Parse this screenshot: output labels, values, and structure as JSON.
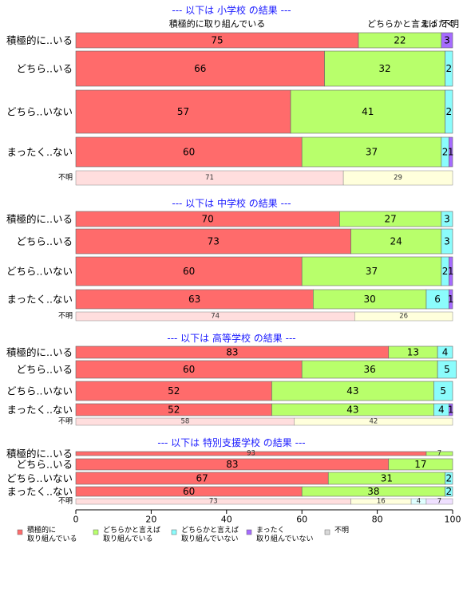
{
  "chart_data": {
    "type": "bar",
    "orientation": "horizontal-stacked",
    "xlim": [
      0,
      100
    ],
    "xticks": [
      0,
      20,
      40,
      60,
      80,
      100
    ],
    "category_names": [
      "積極的に取り組んでいる",
      "どちらかと言えば取り組んでいる",
      "どちらかと言えば取り組んでいない",
      "まったく取り組んでいない",
      "不明"
    ],
    "colors": [
      "#ff6b6b",
      "#b8ff6b",
      "#8bfcfc",
      "#a66bff",
      "#d9d9d9"
    ],
    "legend": [
      {
        "lines": [
          "積極的に",
          "取り組んでいる"
        ]
      },
      {
        "lines": [
          "どちらかと言えば",
          "取り組んでいる"
        ]
      },
      {
        "lines": [
          "どちらかと言えば",
          "取り組んでいない"
        ]
      },
      {
        "lines": [
          "まったく",
          "取り組んでいない"
        ]
      },
      {
        "lines": [
          "不明"
        ]
      }
    ],
    "top_labels": [
      "積極的に取り組んでいる",
      "どちらかと言えば",
      "まったく",
      "不明"
    ],
    "panels": [
      {
        "title": "--- 以下は 小学校 の結果 ---",
        "rows": [
          {
            "label": "積極的に..いる",
            "values": [
              75,
              22,
              0,
              3
            ]
          },
          {
            "label": "どちら..いる",
            "values": [
              66,
              32,
              2,
              0
            ]
          },
          {
            "label": "どちら..いない",
            "values": [
              57,
              41,
              2,
              0
            ]
          },
          {
            "label": "まったく..ない",
            "values": [
              60,
              37,
              2,
              1
            ]
          }
        ],
        "unknown": {
          "label": "不明",
          "values": [
            71,
            29
          ]
        }
      },
      {
        "title": "--- 以下は 中学校 の結果 ---",
        "rows": [
          {
            "label": "積極的に..いる",
            "values": [
              70,
              27,
              3,
              0
            ]
          },
          {
            "label": "どちら..いる",
            "values": [
              73,
              24,
              3,
              0
            ]
          },
          {
            "label": "どちら..いない",
            "values": [
              60,
              37,
              2,
              1
            ]
          },
          {
            "label": "まったく..ない",
            "values": [
              63,
              30,
              6,
              1
            ]
          }
        ],
        "unknown": {
          "label": "不明",
          "values": [
            74,
            26
          ]
        }
      },
      {
        "title": "--- 以下は 高等学校 の結果 ---",
        "rows": [
          {
            "label": "積極的に..いる",
            "values": [
              83,
              13,
              4,
              0
            ]
          },
          {
            "label": "どちら..いる",
            "values": [
              60,
              36,
              5,
              0
            ]
          },
          {
            "label": "どちら..いない",
            "values": [
              52,
              43,
              5,
              0
            ]
          },
          {
            "label": "まったく..ない",
            "values": [
              52,
              43,
              4,
              1
            ]
          }
        ],
        "unknown": {
          "label": "不明",
          "values": [
            58,
            42
          ]
        }
      },
      {
        "title": "--- 以下は 特別支援学校 の結果 ---",
        "rows": [
          {
            "label": "積極的に..いる",
            "values": [
              93,
              7,
              0,
              0
            ]
          },
          {
            "label": "どちら..いる",
            "values": [
              83,
              17,
              0,
              0
            ]
          },
          {
            "label": "どちら..いない",
            "values": [
              67,
              31,
              2,
              0
            ]
          },
          {
            "label": "まったく..ない",
            "values": [
              60,
              38,
              2,
              0
            ]
          }
        ],
        "unknown": {
          "label": "不明",
          "values": [
            73,
            16,
            4,
            7
          ]
        }
      }
    ]
  }
}
